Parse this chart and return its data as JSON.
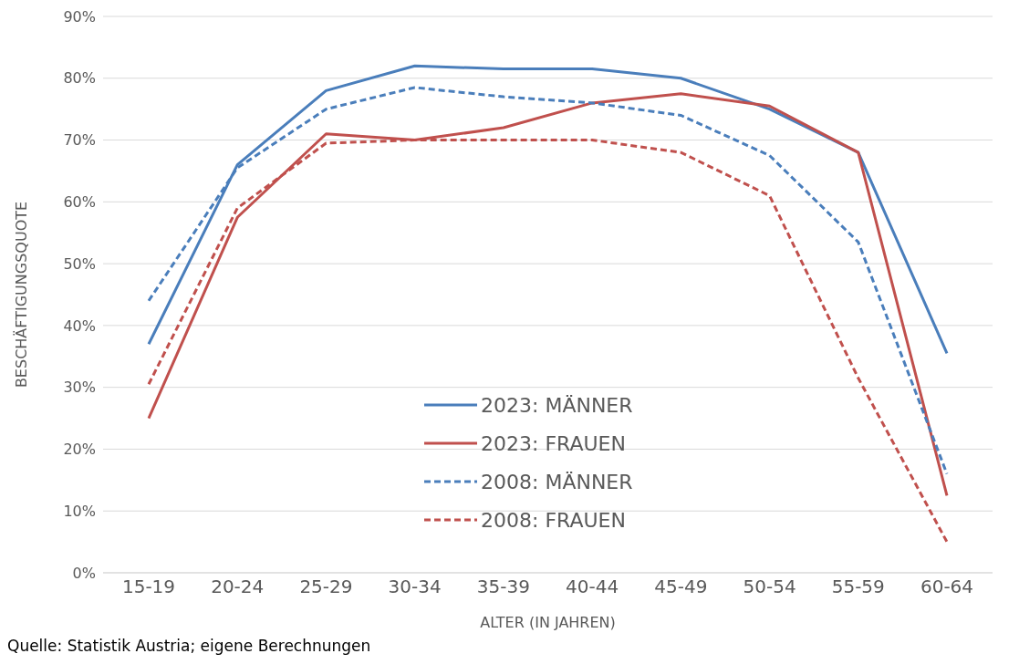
{
  "chart_data": {
    "type": "line",
    "xlabel": "ALTER (IN JAHREN)",
    "ylabel": "BESCHÄFTIGUNGSQUOTE",
    "categories": [
      "15-19",
      "20-24",
      "25-29",
      "30-34",
      "35-39",
      "40-44",
      "45-49",
      "50-54",
      "55-59",
      "60-64"
    ],
    "series": [
      {
        "name": "2023: MÄNNER",
        "color": "#4a7ebb",
        "line_style": "solid",
        "values": [
          37,
          66,
          78,
          82,
          81.5,
          81.5,
          80,
          75,
          68,
          35.5
        ]
      },
      {
        "name": "2023: FRAUEN",
        "color": "#c0504d",
        "line_style": "solid",
        "values": [
          25,
          57.5,
          71,
          70,
          72,
          76,
          77.5,
          75.5,
          68,
          12.5
        ]
      },
      {
        "name": "2008: MÄNNER",
        "color": "#4a7ebb",
        "line_style": "dashed",
        "values": [
          44,
          65.5,
          75,
          78.5,
          77,
          76,
          74,
          67.5,
          53.5,
          16
        ]
      },
      {
        "name": "2008: FRAUEN",
        "color": "#c0504d",
        "line_style": "dashed",
        "values": [
          30.5,
          59,
          69.5,
          70,
          70,
          70,
          68,
          61,
          31.5,
          5
        ]
      }
    ],
    "ylim": [
      0,
      90
    ],
    "yticks": [
      {
        "value": 0,
        "label": "0%"
      },
      {
        "value": 10,
        "label": "10%"
      },
      {
        "value": 20,
        "label": "20%"
      },
      {
        "value": 30,
        "label": "30%"
      },
      {
        "value": 40,
        "label": "40%"
      },
      {
        "value": 50,
        "label": "50%"
      },
      {
        "value": 60,
        "label": "60%"
      },
      {
        "value": 70,
        "label": "70%"
      },
      {
        "value": 80,
        "label": "80%"
      },
      {
        "value": 90,
        "label": "90%"
      }
    ],
    "grid": "y",
    "legend": "center",
    "marker": "none",
    "annotations": [
      "Quelle: Statistik Austria; eigene Berechnungen"
    ]
  }
}
